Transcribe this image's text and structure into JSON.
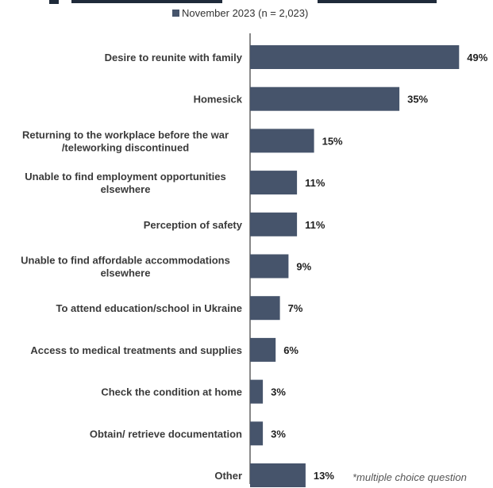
{
  "colors": {
    "bar": "#46546b",
    "axis": "#3a3a3a"
  },
  "chart_data": {
    "type": "bar",
    "orientation": "horizontal",
    "categories": [
      [
        "Desire to reunite with family"
      ],
      [
        "Homesick"
      ],
      [
        "Returning to the workplace before the war",
        "/teleworking discontinued"
      ],
      [
        "Unable to find employment opportunities",
        "elsewhere"
      ],
      [
        "Perception of safety"
      ],
      [
        "Unable to find affordable accommodations",
        "elsewhere"
      ],
      [
        "To attend education/school in Ukraine"
      ],
      [
        "Access to medical treatments and supplies"
      ],
      [
        "Check the condition at home"
      ],
      [
        "Obtain/ retrieve documentation"
      ],
      [
        "Other"
      ]
    ],
    "series": [
      {
        "name": "November 2023 (n = 2,023)",
        "values": [
          49,
          35,
          15,
          11,
          11,
          9,
          7,
          6,
          3,
          3,
          13
        ]
      }
    ],
    "value_labels": [
      "49%",
      "35%",
      "15%",
      "11%",
      "11%",
      "9%",
      "7%",
      "6%",
      "3%",
      "3%",
      "13%"
    ],
    "xlim": [
      0,
      50
    ],
    "grid": false,
    "legend_position": "top-center",
    "annotation": "*multiple choice question"
  }
}
